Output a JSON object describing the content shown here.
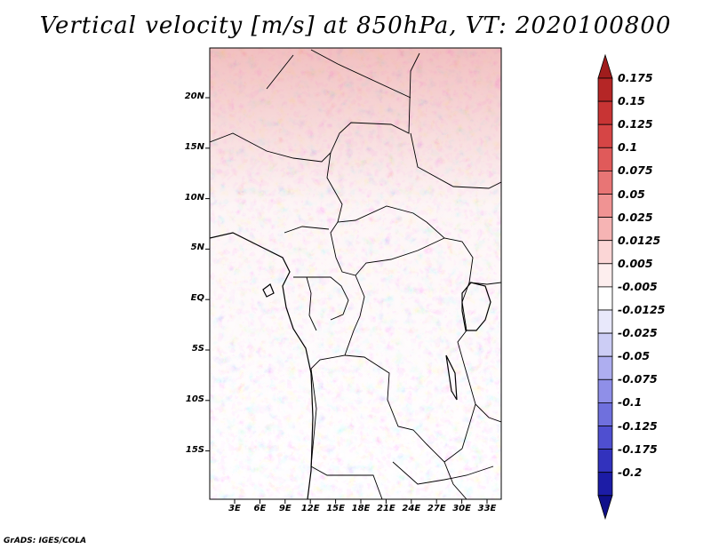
{
  "title": "Vertical velocity [m/s] at 850hPa, VT: 2020100800",
  "map": {
    "variable": "Vertical velocity",
    "units": "m/s",
    "level": "850hPa",
    "valid_time": "2020100800",
    "y_ticks": [
      "20N",
      "15N",
      "10N",
      "5N",
      "EQ",
      "5S",
      "10S",
      "15S"
    ],
    "x_ticks": [
      "3E",
      "6E",
      "9E",
      "12E",
      "15E",
      "18E",
      "21E",
      "24E",
      "27E",
      "30E",
      "33E"
    ]
  },
  "colorbar": {
    "labels": [
      "0.175",
      "0.15",
      "0.125",
      "0.1",
      "0.075",
      "0.05",
      "0.025",
      "0.0125",
      "0.005",
      "-0.005",
      "-0.0125",
      "-0.025",
      "-0.05",
      "-0.075",
      "-0.1",
      "-0.125",
      "-0.175",
      "-0.2"
    ],
    "colors": [
      "#a01c1c",
      "#b52626",
      "#c83434",
      "#d64545",
      "#e05a5a",
      "#e87575",
      "#f09393",
      "#f6b4b4",
      "#fbd6d6",
      "#fdeeee",
      "#ffffff",
      "#e8e8fb",
      "#cccdf5",
      "#aeaef0",
      "#8f8fe8",
      "#6f70dd",
      "#4f4fd0",
      "#3232bd",
      "#1c1ca6",
      "#10108a"
    ]
  },
  "footer": "GrADS: IGES/COLA"
}
